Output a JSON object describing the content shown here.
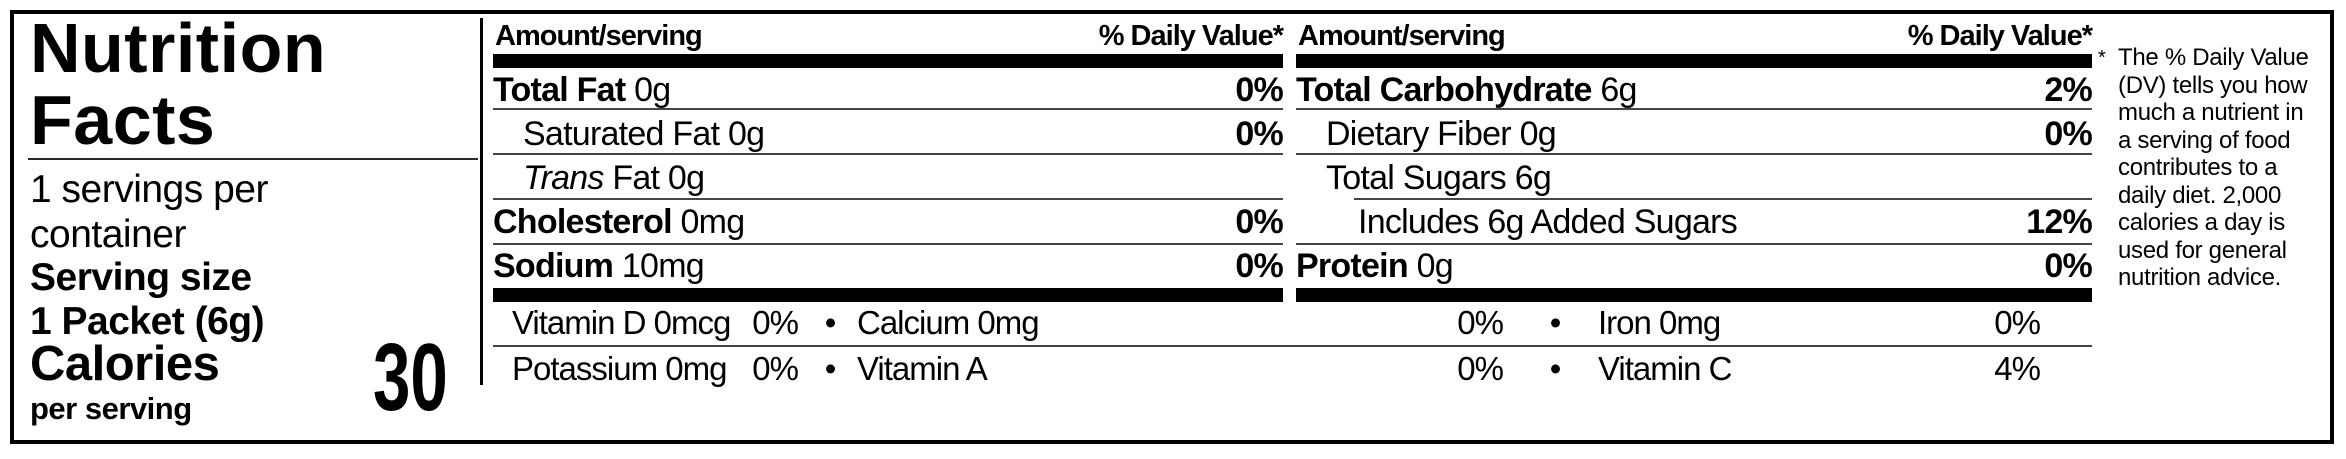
{
  "label": {
    "title_line1": "Nutrition",
    "title_line2": "Facts",
    "servings_line1": "1 servings per",
    "servings_line2": "container",
    "serving_size_label": "Serving size",
    "serving_size_value": "1 Packet (6g)",
    "calories_label": "Calories",
    "calories_sublabel": "per serving",
    "calories_value": "30"
  },
  "headers": {
    "amount": "Amount/serving",
    "daily_value": "% Daily Value*"
  },
  "columns": [
    {
      "rows": [
        {
          "name": "Total Fat",
          "amount": "0g",
          "dv": "0%"
        },
        {
          "name": "Saturated Fat",
          "amount": "0g",
          "dv": "0%"
        },
        {
          "italic": "Trans",
          "name": "Fat",
          "amount": "0g",
          "dv": ""
        },
        {
          "name": "Cholesterol",
          "amount": "0mg",
          "dv": "0%"
        },
        {
          "name": "Sodium",
          "amount": "10mg",
          "dv": "0%"
        }
      ]
    },
    {
      "rows": [
        {
          "name": "Total Carbohydrate",
          "amount": "6g",
          "dv": "2%"
        },
        {
          "name": "Dietary Fiber",
          "amount": "0g",
          "dv": "0%"
        },
        {
          "name": "Total Sugars",
          "amount": "6g",
          "dv": ""
        },
        {
          "name": "Includes 6g Added Sugars",
          "amount": "",
          "dv": "12%"
        },
        {
          "name": "Protein",
          "amount": "0g",
          "dv": "0%"
        }
      ]
    }
  ],
  "micronutrients": {
    "bullet": "•",
    "rows": [
      [
        {
          "label": "Vitamin D 0mcg",
          "dv": "0%"
        },
        {
          "label": "Calcium 0mg",
          "dv": "0%"
        },
        {
          "label": "Iron 0mg",
          "dv": "0%"
        }
      ],
      [
        {
          "label": "Potassium 0mg",
          "dv": "0%"
        },
        {
          "label": "Vitamin A",
          "dv": "0%"
        },
        {
          "label": "Vitamin C",
          "dv": "4%"
        }
      ]
    ]
  },
  "footnote": {
    "marker": "*",
    "lines": [
      "The % Daily Value",
      "(DV) tells you how",
      "much a nutrient in",
      "a serving of food",
      "contributes to a",
      "daily diet. 2,000",
      "calories a day is",
      "used for general",
      "nutrition advice."
    ]
  }
}
